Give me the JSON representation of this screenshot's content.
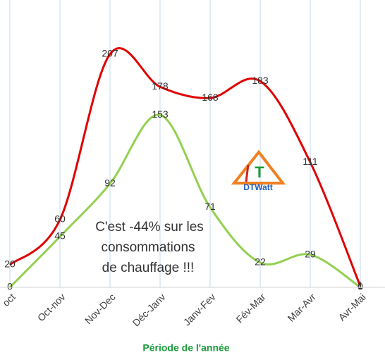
{
  "chart_data": {
    "type": "line",
    "categories": [
      "oct",
      "Oct-nov",
      "Nov-Dec",
      "Déc-Janv",
      "Janv-Fev",
      "Fév-Mar",
      "Mar-Avr",
      "Avr-Mai"
    ],
    "series": [
      {
        "color": "#e00000",
        "values": [
          20,
          60,
          207,
          178,
          168,
          183,
          111,
          1
        ]
      },
      {
        "color": "#92d050",
        "values": [
          0,
          45,
          92,
          153,
          71,
          22,
          29,
          0
        ]
      }
    ],
    "ylim": [
      0,
      250
    ],
    "x_label": "Période de l'année",
    "annotation": [
      "C'est -44% sur les",
      "consommations",
      "de chauffage !!!"
    ],
    "logo_letter": "T",
    "logo_text": "DTWatt"
  }
}
